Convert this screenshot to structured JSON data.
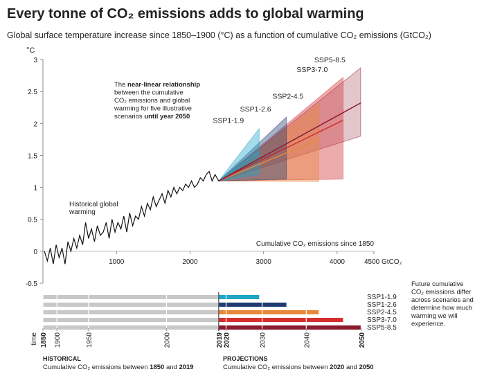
{
  "chart_data": {
    "type": "line",
    "title": "Every tonne of CO₂ emissions adds to global warming",
    "subtitle": "Global surface temperature increase since 1850–1900 (°C) as a function of cumulative CO₂ emissions (GtCO₂)",
    "y_label": "°C",
    "ylim": [
      -0.5,
      3
    ],
    "yticks": [
      -0.5,
      0,
      0.5,
      1,
      1.5,
      2,
      2.5,
      3
    ],
    "xlim": [
      0,
      4500
    ],
    "xticks": [
      1000,
      2000,
      3000,
      4000,
      {
        "value": 4500,
        "label": "4500 GtCO₂"
      }
    ],
    "x_label": "Cumulative CO₂ emissions since 1850",
    "historical": {
      "label_lines": [
        "Historical global",
        "warming"
      ],
      "color": "#111111",
      "x": [
        20,
        60,
        100,
        140,
        180,
        220,
        260,
        300,
        340,
        380,
        420,
        460,
        500,
        540,
        580,
        620,
        660,
        700,
        740,
        780,
        820,
        860,
        900,
        940,
        980,
        1020,
        1060,
        1100,
        1140,
        1180,
        1220,
        1260,
        1300,
        1340,
        1380,
        1420,
        1460,
        1500,
        1540,
        1580,
        1620,
        1660,
        1700,
        1740,
        1780,
        1820,
        1860,
        1900,
        1940,
        1980,
        2020,
        2060,
        2100,
        2140,
        2180,
        2220,
        2260,
        2300,
        2340,
        2390
      ],
      "values": [
        0.0,
        -0.15,
        0.05,
        -0.2,
        0.1,
        -0.1,
        0.05,
        -0.2,
        0.15,
        0.0,
        0.2,
        0.05,
        0.25,
        0.1,
        0.45,
        0.2,
        0.35,
        0.15,
        0.4,
        0.25,
        0.3,
        0.45,
        0.2,
        0.5,
        0.3,
        0.45,
        0.35,
        0.55,
        0.3,
        0.6,
        0.4,
        0.55,
        0.5,
        0.7,
        0.55,
        0.75,
        0.65,
        0.85,
        0.7,
        0.8,
        0.9,
        0.75,
        0.95,
        0.85,
        1.0,
        0.9,
        1.0,
        0.95,
        1.05,
        1.0,
        1.1,
        1.0,
        1.05,
        1.15,
        1.1,
        1.2,
        1.25,
        1.1,
        1.2,
        1.1
      ]
    },
    "series": [
      {
        "name": "SSP1-1.9",
        "color": "#1fa7c9",
        "end_x": 2940,
        "center": 1.55,
        "low": 1.2,
        "high": 1.92
      },
      {
        "name": "SSP1-2.6",
        "color": "#1f3b70",
        "end_x": 3310,
        "center": 1.62,
        "low": 1.13,
        "high": 2.1
      },
      {
        "name": "SSP2-4.5",
        "color": "#e8873a",
        "end_x": 3750,
        "center": 1.75,
        "low": 1.09,
        "high": 2.3
      },
      {
        "name": "SSP3-7.0",
        "color": "#d32f2f",
        "end_x": 4080,
        "center": 2.05,
        "low": 1.13,
        "high": 2.72
      },
      {
        "name": "SSP5-8.5",
        "color": "#8b1a2f",
        "end_x": 4320,
        "center": 2.32,
        "low": 1.8,
        "high": 2.87
      }
    ],
    "annotation": [
      [
        {
          "text": "The "
        },
        {
          "text": "near-linear relationship",
          "bold": true
        }
      ],
      [
        {
          "text": "between the cumulative"
        }
      ],
      [
        {
          "text": "CO₂ emissions and global"
        }
      ],
      [
        {
          "text": "warming for five illustrative"
        }
      ],
      [
        {
          "text": "scenarios "
        },
        {
          "text": "until year 2050",
          "bold": true
        }
      ]
    ],
    "time_label": "time",
    "time_ticks": [
      {
        "value": 0,
        "label": "1850",
        "bold": true
      },
      {
        "value": 190,
        "label": "1900"
      },
      {
        "value": 620,
        "label": "1950"
      },
      {
        "value": 1680,
        "label": "2000"
      },
      {
        "value": 2390,
        "label": "2019",
        "bold": true
      },
      {
        "value": 2490,
        "label": "2020",
        "bold": true
      },
      {
        "value": 2980,
        "label": "2030"
      },
      {
        "value": 3580,
        "label": "2040"
      },
      {
        "value": 4330,
        "label": "2050",
        "bold": true
      }
    ],
    "note": [
      "Future cumulative",
      "CO₂ emissions differ",
      "across scenarios and",
      "determine how much",
      "warming we will",
      "experience."
    ],
    "footer": [
      {
        "heading": "HISTORICAL",
        "text": [
          {
            "text": "Cumulative CO₂ emissions between "
          },
          {
            "text": "1850",
            "bold": true
          },
          {
            "text": " and "
          },
          {
            "text": "2019",
            "bold": true
          }
        ]
      },
      {
        "heading": "PROJECTIONS",
        "text": [
          {
            "text": "Cumulative CO₂ emissions between "
          },
          {
            "text": "2020",
            "bold": true
          },
          {
            "text": " and "
          },
          {
            "text": "2050",
            "bold": true
          }
        ]
      }
    ]
  }
}
